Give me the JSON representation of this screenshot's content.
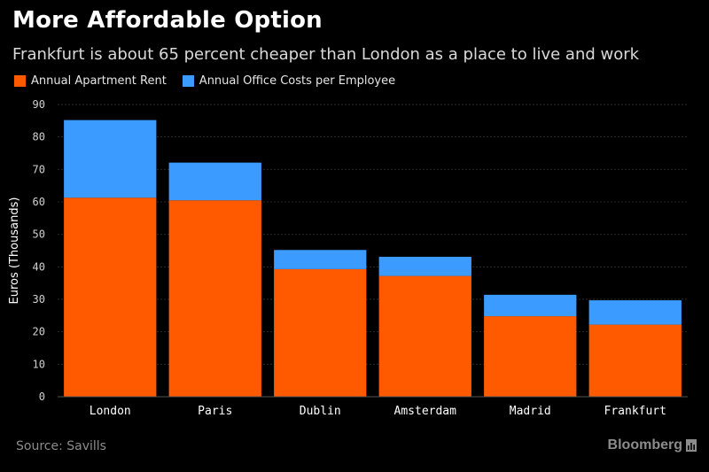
{
  "header": {
    "title": "More Affordable Option",
    "subtitle": "Frankfurt is about 65 percent cheaper than London as a place to live and work"
  },
  "footer": {
    "source": "Source: Savills",
    "brand": "Bloomberg",
    "brand_icon": "bloomberg-logo-icon"
  },
  "colors": {
    "background": "#000000",
    "rent": "#ff5a00",
    "office": "#3c9bff",
    "grid": "#2a2a2a",
    "text": "#ffffff",
    "muted": "#8c8c8c"
  },
  "chart_data": {
    "type": "bar",
    "stacked": true,
    "title": "More Affordable Option",
    "subtitle": "Frankfurt is about 65 percent cheaper than London as a place to live and work",
    "xlabel": "",
    "ylabel": "Euros (Thousands)",
    "ylim": [
      0,
      90
    ],
    "yticks": [
      0,
      10,
      20,
      30,
      40,
      50,
      60,
      70,
      80,
      90
    ],
    "grid": true,
    "legend": "top-left",
    "categories": [
      "London",
      "Paris",
      "Dublin",
      "Amsterdam",
      "Madrid",
      "Frankfurt"
    ],
    "series": [
      {
        "name": "Annual Apartment Rent",
        "color": "#ff5a00",
        "values": [
          61.3,
          60.5,
          39.3,
          37.2,
          24.8,
          22.2
        ]
      },
      {
        "name": "Annual Office Costs per Employee",
        "color": "#3c9bff",
        "values": [
          23.9,
          11.6,
          5.9,
          5.9,
          6.6,
          7.5
        ]
      }
    ]
  }
}
